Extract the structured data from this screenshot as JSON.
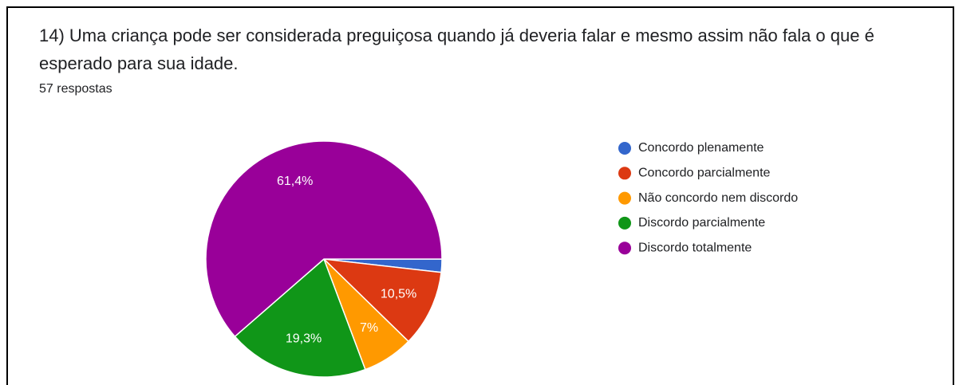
{
  "chart_data": {
    "type": "pie",
    "title": "14) Uma criança pode ser considerada preguiçosa quando já deveria falar e mesmo assim não fala o que é esperado para sua idade.",
    "subtitle": "57 respostas",
    "categories": [
      "Concordo plenamente",
      "Concordo parcialmente",
      "Não concordo nem discordo",
      "Discordo parcialmente",
      "Discordo totalmente"
    ],
    "values": [
      1.8,
      10.5,
      7,
      19.3,
      61.4
    ],
    "value_labels": [
      null,
      "10,5%",
      "7%",
      "19,3%",
      "61,4%"
    ],
    "colors": [
      "#3366cc",
      "#dc3912",
      "#ff9900",
      "#109618",
      "#990099"
    ],
    "legend": "right"
  }
}
